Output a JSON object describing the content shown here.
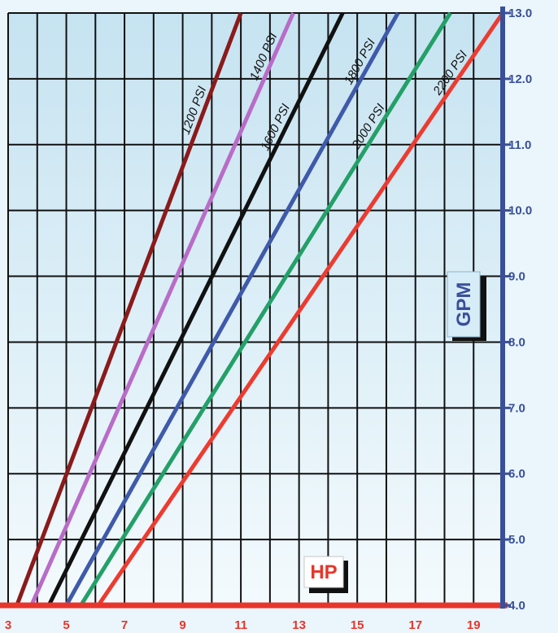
{
  "chart_data": {
    "type": "line",
    "title": "",
    "xlabel": "HP",
    "ylabel": "GPM",
    "xlim": [
      3,
      20
    ],
    "ylim": [
      4,
      13
    ],
    "grid": true,
    "x_ticks": [
      3,
      4,
      5,
      6,
      7,
      8,
      9,
      10,
      11,
      12,
      13,
      14,
      15,
      16,
      17,
      18,
      19,
      20
    ],
    "x_tick_labels": [
      "3",
      "5",
      "7",
      "9",
      "11",
      "13",
      "15",
      "17",
      "19"
    ],
    "y_ticks": [
      4,
      5,
      6,
      7,
      8,
      9,
      10,
      11,
      12,
      13
    ],
    "y_tick_labels": [
      "4.0",
      "5.0",
      "6.0",
      "7.0",
      "8.0",
      "9.0",
      "10.0",
      "11.0",
      "12.0",
      "13.0"
    ],
    "series": [
      {
        "name": "1200 PSI",
        "color": "#8b1a1a",
        "points": [
          [
            3.3,
            4.0
          ],
          [
            11.0,
            13.0
          ]
        ]
      },
      {
        "name": "1400 PSI",
        "color": "#b86cc8",
        "points": [
          [
            3.8,
            4.0
          ],
          [
            12.8,
            13.0
          ]
        ]
      },
      {
        "name": "1600 PSI",
        "color": "#111111",
        "points": [
          [
            4.4,
            4.0
          ],
          [
            14.5,
            13.0
          ]
        ]
      },
      {
        "name": "1800 PSI",
        "color": "#3f5aaa",
        "points": [
          [
            5.0,
            4.0
          ],
          [
            16.4,
            13.0
          ]
        ]
      },
      {
        "name": "2000 PSI",
        "color": "#23a068",
        "points": [
          [
            5.5,
            4.0
          ],
          [
            18.2,
            13.0
          ]
        ]
      },
      {
        "name": "2200 PSI",
        "color": "#ee3a2f",
        "points": [
          [
            6.1,
            4.0
          ],
          [
            20.0,
            13.0
          ]
        ]
      }
    ],
    "colors": {
      "x_axis": "#e8342a",
      "y_axis": "#3a4f9a",
      "grid": "#111111",
      "background": "#eaf6fc"
    }
  }
}
